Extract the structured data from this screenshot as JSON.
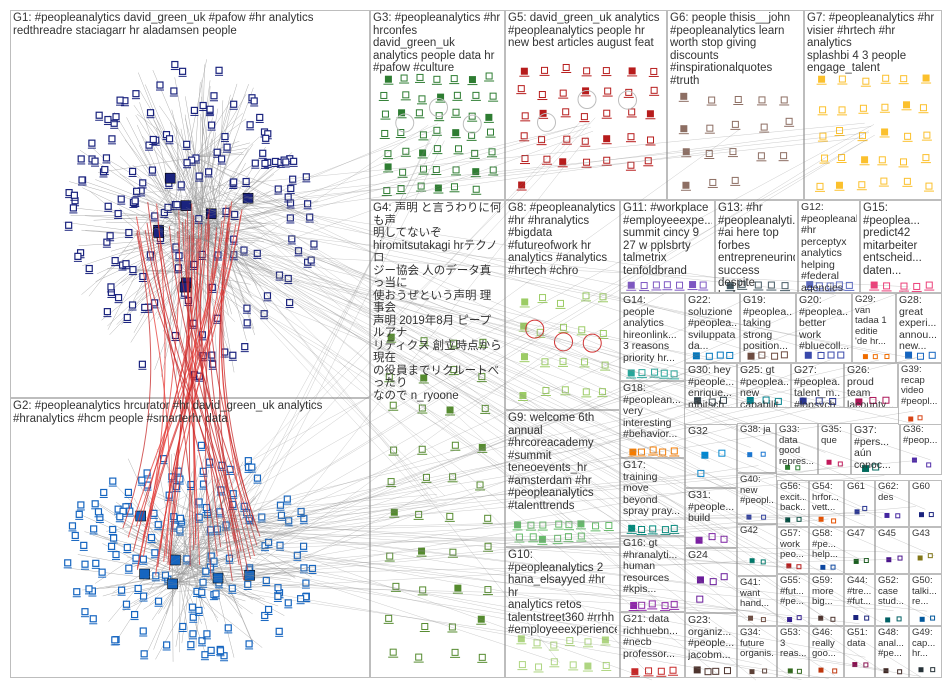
{
  "graph": {
    "title": "",
    "groups": [
      {
        "id": "G1",
        "label": "G1: #peopleanalytics david_green_uk #pafow #hr analytics\nredthreadre staciagarr hr aladamsen people",
        "color": "#1a237e",
        "nodes": 160,
        "hubs": 8,
        "ring": true
      },
      {
        "id": "G2",
        "label": "G2: #peopleanalytics hrcurator #hr david_green_uk analytics\n#hranalytics #hcm people #smarterhr data",
        "color": "#1565c0",
        "nodes": 150,
        "hubs": 6,
        "ring": true
      },
      {
        "id": "G3",
        "label": "G3: #peopleanalytics #hr\nhrconfes david_green_uk\nanalytics people data hr\n#pafow #culture",
        "color": "#2e7d32",
        "nodes": 48,
        "hubs": 0
      },
      {
        "id": "G4",
        "label": "G4: 声明 と言うわりに何も声\n明してないぞ\nhiromitsutakagi hrテクノロ\nジー協会 人のデータ真っ当に\n使おうぜという声明 理事会\n声明 2019年8月 ピープルアナ\nリティクス 創立時点から現在\nの役員までリクルートべったり\nなので n_ryoone",
        "color": "#558b2f",
        "nodes": 40,
        "hubs": 0
      },
      {
        "id": "G5",
        "label": "G5: david_green_uk analytics\n#peopleanalytics people hr\nnew best articles august feat",
        "color": "#b71c1c",
        "nodes": 36,
        "hubs": 0
      },
      {
        "id": "G6",
        "label": "G6: people thisis__john\n#peopleanalytics learn\nworth stop giving\ndiscounts\n#inspirationalquotes #truth",
        "color": "#8d6e63",
        "nodes": 18,
        "hubs": 0
      },
      {
        "id": "G7",
        "label": "G7: #peopleanalytics #hr\nvisier #hrtech #hr analytics\nsplashbi 4 3 people\nengage_talent",
        "color": "#fbc02d",
        "nodes": 30,
        "hubs": 0
      },
      {
        "id": "G8",
        "label": "G8: #peopleanalytics\n#hr #hranalytics\n#bigdata\n#futureofwork hr\nanalytics #analytics\n#hrtech #chro",
        "color": "#9ccc65",
        "nodes": 20,
        "hubs": 0
      },
      {
        "id": "G9",
        "label": "G9: welcome 6th\nannual\n#hrcoreacademy\n#summit\nteneoevents_hr\n#amsterdam #hr\n#peopleanalytics\n#talenttrends",
        "color": "#66bb6a",
        "nodes": 14,
        "hubs": 0
      },
      {
        "id": "G10",
        "label": "G10:\n#peopleanalytics 2\nhana_elsayyed #hr hr\nanalytics retos\ntalentstreet360 #rrhh\n#employeeexperience",
        "color": "#aed581",
        "nodes": 12,
        "hubs": 0
      },
      {
        "id": "G11",
        "label": "G11: #workplace\n#employeeexpe...\nsummit cincy 9\n27 w pplsbrty\ntalmetrix\ntenfoldbrand",
        "color": "#7e57c2",
        "nodes": 8,
        "hubs": 0
      },
      {
        "id": "G12",
        "label": "G12:\n#peopleanalyti...\n#hr perceptyx\nanalytics\nhelping #federal\nagencies gain\nactionable...",
        "color": "#5c6bc0",
        "nodes": 6,
        "hubs": 0
      },
      {
        "id": "G13",
        "label": "G13: #hr\n#peopleanalyti...\n#ai here top\nforbes\nentrepreneurind\nsuccess despite\nlack",
        "color": "#455a64",
        "nodes": 6,
        "hubs": 0
      },
      {
        "id": "G14",
        "label": "G14:\npeople\nanalytics\nhireonlink...\n3 reasons\npriority hr...",
        "color": "#26a69a",
        "nodes": 6,
        "hubs": 0
      },
      {
        "id": "G15",
        "label": "G15:\n#peoplea...\npredict42\nmitarbeiter\nentscheid...\ndaten...",
        "color": "#ec407a",
        "nodes": 5,
        "hubs": 0
      },
      {
        "id": "G16",
        "label": "G16: gt\n#hranalyti...\nhuman\nresources\n#kpis...",
        "color": "#8e24aa",
        "nodes": 5,
        "hubs": 0
      },
      {
        "id": "G17",
        "label": "G17:\ntraining\nmove\nbeyond\nspray pray...",
        "color": "#00897b",
        "nodes": 5,
        "hubs": 0
      },
      {
        "id": "G18",
        "label": "G18:\n#peoplean...\nvery\ninteresting\n#behavior...",
        "color": "#f57c00",
        "nodes": 5,
        "hubs": 0
      },
      {
        "id": "G19",
        "label": "G19:\n#peoplea...\ntaking\nstrong\nposition...",
        "color": "#6d4c41",
        "nodes": 4,
        "hubs": 0
      },
      {
        "id": "G20",
        "label": "G20:\n#peoplea...\nbetter\nwork\n#bluecoll...",
        "color": "#3949ab",
        "nodes": 4,
        "hubs": 0
      },
      {
        "id": "G21",
        "label": "G21: data\nrichhuebn...\n#necb\nprofessor...",
        "color": "#c62828",
        "nodes": 4,
        "hubs": 0
      },
      {
        "id": "G22",
        "label": "G22:\nsoluzione\n#peoplea...\nsviluppata\nda...",
        "color": "#0277bd",
        "nodes": 4,
        "hubs": 0
      },
      {
        "id": "G23",
        "label": "G23:\norganiz...\n#people...\njacobm...",
        "color": "#4e342e",
        "nodes": 4,
        "hubs": 0
      },
      {
        "id": "G24",
        "label": "G24",
        "color": "#6a1b9a",
        "nodes": 4,
        "hubs": 0
      },
      {
        "id": "G25",
        "label": "G25: gt\n#peoplea...\nnew\ncapabilit...",
        "color": "#00838f",
        "nodes": 3,
        "hubs": 0
      },
      {
        "id": "G26",
        "label": "G26:\nproud\nteam\nlacounty...",
        "color": "#ad1457",
        "nodes": 3,
        "hubs": 0
      },
      {
        "id": "G27",
        "label": "G27:\n#peoplea...\ntalent_m...\n#lopsych...",
        "color": "#283593",
        "nodes": 3,
        "hubs": 0
      },
      {
        "id": "G28",
        "label": "G28:\ngreat\nexperi...\nannou...\nnew...",
        "color": "#1565c0",
        "nodes": 3,
        "hubs": 0
      },
      {
        "id": "G29",
        "label": "G29:\nvan\ntadaa 1\neditie\n'de hr...",
        "color": "#ef6c00",
        "nodes": 3,
        "hubs": 0
      },
      {
        "id": "G30",
        "label": "G30: hey\n#people...\nenrique...\nmbitsch...",
        "color": "#37474f",
        "nodes": 3,
        "hubs": 0
      },
      {
        "id": "G31",
        "label": "G31:\n#people...\nbuild",
        "color": "#7b1fa2",
        "nodes": 3,
        "hubs": 0
      },
      {
        "id": "G32",
        "label": "G32",
        "color": "#0288d1",
        "nodes": 3,
        "hubs": 0
      },
      {
        "id": "G33",
        "label": "G33:\ndata\ngood\nrepres...",
        "color": "#2e7d32",
        "nodes": 2,
        "hubs": 0
      },
      {
        "id": "G34",
        "label": "G34:\nfuture\norganis...",
        "color": "#5d4037",
        "nodes": 2,
        "hubs": 0
      },
      {
        "id": "G35",
        "label": "G35:\nque",
        "color": "#c2185b",
        "nodes": 2,
        "hubs": 0
      },
      {
        "id": "G36",
        "label": "G36:\n#peop...",
        "color": "#512da8",
        "nodes": 2,
        "hubs": 0
      },
      {
        "id": "G37",
        "label": "G37:\n#pers...\naún\nconoc...",
        "color": "#00695c",
        "nodes": 2,
        "hubs": 0
      },
      {
        "id": "G38",
        "label": "G38: ja",
        "color": "#1976d2",
        "nodes": 2,
        "hubs": 0
      },
      {
        "id": "G39",
        "label": "G39:\nrecap\nvideo\n#peopl...",
        "color": "#d84315",
        "nodes": 2,
        "hubs": 0
      },
      {
        "id": "G40",
        "label": "G40:\nnew\n#peopl...",
        "color": "#303f9f",
        "nodes": 2,
        "hubs": 0
      },
      {
        "id": "G41",
        "label": "G41:\nwant\nhand...",
        "color": "#6d4c41",
        "nodes": 2,
        "hubs": 0
      },
      {
        "id": "G42",
        "label": "G42",
        "color": "#00796b",
        "nodes": 2,
        "hubs": 0
      },
      {
        "id": "G43",
        "label": "G43",
        "color": "#827717",
        "nodes": 2,
        "hubs": 0
      },
      {
        "id": "G44",
        "label": "G44:\n#tre...\n#fut...",
        "color": "#1a237e",
        "nodes": 2,
        "hubs": 0
      },
      {
        "id": "G45",
        "label": "G45",
        "color": "#4a148c",
        "nodes": 2,
        "hubs": 0
      },
      {
        "id": "G46",
        "label": "G46:\nreally\ngoo...",
        "color": "#bf360c",
        "nodes": 2,
        "hubs": 0
      },
      {
        "id": "G47",
        "label": "G47",
        "color": "#1b5e20",
        "nodes": 2,
        "hubs": 0
      },
      {
        "id": "G48",
        "label": "G48:\nanal...\n#pe...",
        "color": "#3e2723",
        "nodes": 2,
        "hubs": 0
      },
      {
        "id": "G49",
        "label": "G49:\ncap...\nhr...",
        "color": "#263238",
        "nodes": 2,
        "hubs": 0
      },
      {
        "id": "G50",
        "label": "G50:\ntalki...\nre...",
        "color": "#01579b",
        "nodes": 2,
        "hubs": 0
      },
      {
        "id": "G51",
        "label": "G51:\ndata",
        "color": "#880e4f",
        "nodes": 2,
        "hubs": 0
      },
      {
        "id": "G52",
        "label": "G52:\ncase\nstud...",
        "color": "#006064",
        "nodes": 2,
        "hubs": 0
      },
      {
        "id": "G53",
        "label": "G53:\n3\nreas...",
        "color": "#33691e",
        "nodes": 2,
        "hubs": 0
      },
      {
        "id": "G54",
        "label": "G54:\nhrfor...\nvett...",
        "color": "#e65100",
        "nodes": 2,
        "hubs": 0
      },
      {
        "id": "G55",
        "label": "G55:\n#fut...\n#pe...",
        "color": "#311b92",
        "nodes": 2,
        "hubs": 0
      },
      {
        "id": "G56",
        "label": "G56:\nexcit...\nback...",
        "color": "#004d40",
        "nodes": 2,
        "hubs": 0
      },
      {
        "id": "G57",
        "label": "G57:\nwork\npeo...",
        "color": "#b71c1c",
        "nodes": 2,
        "hubs": 0
      },
      {
        "id": "G58",
        "label": "G58:\n#pe...\nhelp...",
        "color": "#0d47a1",
        "nodes": 2,
        "hubs": 0
      },
      {
        "id": "G59",
        "label": "G59:\nmore\nbig...",
        "color": "#4e342e",
        "nodes": 2,
        "hubs": 0
      },
      {
        "id": "G60",
        "label": "G60",
        "color": "#1a237e",
        "nodes": 2,
        "hubs": 0
      },
      {
        "id": "G61",
        "label": "G61",
        "color": "#283593",
        "nodes": 2,
        "hubs": 0
      },
      {
        "id": "G62",
        "label": "G62:\ndes",
        "color": "#4527a0",
        "nodes": 2,
        "hubs": 0
      }
    ]
  }
}
